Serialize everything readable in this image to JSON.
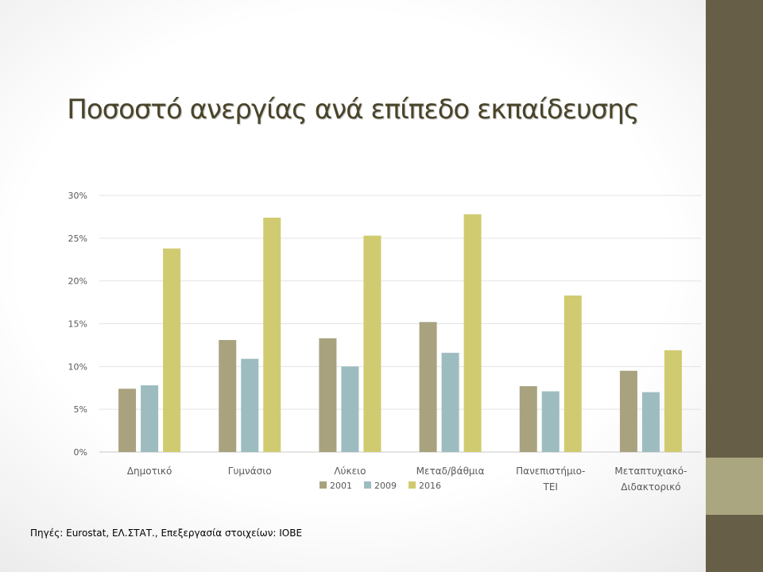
{
  "slide": {
    "title": "Ποσοστό ανεργίας ανά επίπεδο εκπαίδευσης",
    "source_note": "Πηγές: Eurostat, ΕΛ.ΣΤΑΤ., Επεξεργασία στοιχείων: ΙΟΒΕ"
  },
  "colors": {
    "title": "#494429",
    "sidebar_dark": "#675e47",
    "sidebar_light": "#aaa680"
  },
  "chart_data": {
    "type": "bar",
    "title": "",
    "xlabel": "",
    "ylabel": "",
    "categories": [
      "Δημοτικό",
      "Γυμνάσιο",
      "Λύκειο",
      "Μεταδ/βάθμια",
      "Πανεπιστήμιο-ΤΕΙ",
      "Μεταπτυχιακό-Διδακτορικό"
    ],
    "series": [
      {
        "name": "2001",
        "color": "#a8a27f",
        "values": [
          7.4,
          13.1,
          13.3,
          15.2,
          7.7,
          9.5
        ]
      },
      {
        "name": "2009",
        "color": "#9dbcbf",
        "values": [
          7.8,
          10.9,
          10.0,
          11.6,
          7.1,
          7.0
        ]
      },
      {
        "name": "2016",
        "color": "#d0cb70",
        "values": [
          23.8,
          27.4,
          25.3,
          27.8,
          18.3,
          11.9
        ]
      }
    ],
    "ylim": [
      0,
      30
    ],
    "yticks": [
      "0%",
      "5%",
      "10%",
      "15%",
      "20%",
      "25%",
      "30%"
    ],
    "grid": true,
    "legend_position": "bottom"
  }
}
